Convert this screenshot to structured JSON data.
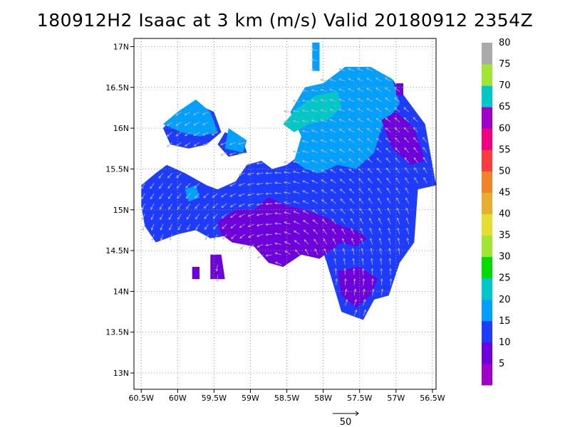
{
  "title": "180912H2 Isaac at 3 km (m/s) Valid 20180912 2354Z",
  "chart_data": {
    "type": "heatmap",
    "title": "180912H2 Isaac at 3 km (m/s) Valid 20180912 2354Z",
    "x_ticks": [
      -60.5,
      -60,
      -59.5,
      -59,
      -58.5,
      -58,
      -57.5,
      -57,
      -56.5
    ],
    "x_tick_labels": [
      "60.5W",
      "60W",
      "59.5W",
      "59W",
      "58.5W",
      "58W",
      "57.5W",
      "57W",
      "56.5W"
    ],
    "y_ticks": [
      13,
      13.5,
      14,
      14.5,
      15,
      15.5,
      16,
      16.5,
      17
    ],
    "y_tick_labels": [
      "13N",
      "13.5N",
      "14N",
      "14.5N",
      "15N",
      "15.5N",
      "16N",
      "16.5N",
      "17N"
    ],
    "xlim": [
      -60.6,
      -56.45
    ],
    "ylim": [
      12.8,
      17.1
    ],
    "grid": true,
    "colorbar": {
      "colors": [
        "#a000c8",
        "#6e00dc",
        "#1e3cff",
        "#00a0ff",
        "#00c8c8",
        "#00dc00",
        "#a0e632",
        "#e6dc32",
        "#e6af2d",
        "#f08228",
        "#fa3c3c",
        "#f00082",
        "#a000c8",
        "#00c8c8",
        "#a0e632",
        "#aaaaaa"
      ],
      "labels": [
        "5",
        "10",
        "15",
        "20",
        "25",
        "30",
        "35",
        "40",
        "45",
        "50",
        "55",
        "60",
        "65",
        "70",
        "75",
        "80"
      ]
    },
    "regions": [
      {
        "level": 15,
        "color": "#1e3cff",
        "polygon": [
          [
            -60.5,
            15.3
          ],
          [
            -60.3,
            15.45
          ],
          [
            -60.15,
            15.55
          ],
          [
            -59.9,
            15.45
          ],
          [
            -59.6,
            15.3
          ],
          [
            -59.45,
            15.25
          ],
          [
            -59.2,
            15.35
          ],
          [
            -59.05,
            15.55
          ],
          [
            -58.85,
            15.6
          ],
          [
            -58.7,
            15.5
          ],
          [
            -58.5,
            15.55
          ],
          [
            -58.35,
            15.65
          ],
          [
            -58.3,
            15.9
          ],
          [
            -58.45,
            16.2
          ],
          [
            -58.25,
            16.5
          ],
          [
            -58.0,
            16.55
          ],
          [
            -57.7,
            16.75
          ],
          [
            -57.35,
            16.75
          ],
          [
            -57.05,
            16.6
          ],
          [
            -56.85,
            16.35
          ],
          [
            -56.6,
            16.05
          ],
          [
            -56.45,
            15.3
          ],
          [
            -56.7,
            15.25
          ],
          [
            -56.75,
            14.6
          ],
          [
            -56.95,
            14.35
          ],
          [
            -57.1,
            13.95
          ],
          [
            -57.3,
            13.9
          ],
          [
            -57.45,
            13.65
          ],
          [
            -57.75,
            13.75
          ],
          [
            -57.95,
            14.35
          ],
          [
            -58.05,
            14.6
          ],
          [
            -58.45,
            14.75
          ],
          [
            -58.8,
            14.65
          ],
          [
            -59.2,
            14.7
          ],
          [
            -59.55,
            14.65
          ],
          [
            -59.75,
            14.75
          ],
          [
            -60.0,
            14.7
          ],
          [
            -60.3,
            14.6
          ],
          [
            -60.45,
            14.8
          ],
          [
            -60.5,
            15.05
          ]
        ]
      },
      {
        "level": 15,
        "color": "#1e3cff",
        "polygon": [
          [
            -60.2,
            16.0
          ],
          [
            -60.0,
            16.2
          ],
          [
            -59.75,
            16.3
          ],
          [
            -59.5,
            16.2
          ],
          [
            -59.4,
            15.95
          ],
          [
            -59.6,
            15.8
          ],
          [
            -59.85,
            15.75
          ],
          [
            -60.1,
            15.8
          ]
        ]
      },
      {
        "level": 15,
        "color": "#1e3cff",
        "polygon": [
          [
            -59.35,
            15.95
          ],
          [
            -59.1,
            15.85
          ],
          [
            -59.05,
            15.7
          ],
          [
            -59.3,
            15.65
          ],
          [
            -59.45,
            15.8
          ]
        ]
      },
      {
        "level": 20,
        "color": "#00a0ff",
        "polygon": [
          [
            -58.4,
            15.6
          ],
          [
            -58.3,
            15.9
          ],
          [
            -58.45,
            16.2
          ],
          [
            -58.25,
            16.5
          ],
          [
            -58.0,
            16.55
          ],
          [
            -57.7,
            16.75
          ],
          [
            -57.35,
            16.75
          ],
          [
            -57.05,
            16.6
          ],
          [
            -56.95,
            16.3
          ],
          [
            -57.2,
            16.0
          ],
          [
            -57.3,
            15.7
          ],
          [
            -57.55,
            15.5
          ],
          [
            -57.8,
            15.55
          ],
          [
            -58.05,
            15.45
          ],
          [
            -58.25,
            15.5
          ]
        ]
      },
      {
        "level": 20,
        "color": "#00a0ff",
        "polygon": [
          [
            -60.2,
            16.05
          ],
          [
            -60.0,
            16.2
          ],
          [
            -59.75,
            16.35
          ],
          [
            -59.55,
            16.2
          ],
          [
            -59.45,
            15.95
          ],
          [
            -59.7,
            15.9
          ],
          [
            -59.95,
            15.95
          ]
        ]
      },
      {
        "level": 20,
        "color": "#00a0ff",
        "polygon": [
          [
            -59.3,
            16.0
          ],
          [
            -59.05,
            15.85
          ],
          [
            -59.1,
            15.7
          ],
          [
            -59.35,
            15.75
          ]
        ]
      },
      {
        "level": 20,
        "color": "#00a0ff",
        "polygon": [
          [
            -58.15,
            17.05
          ],
          [
            -58.05,
            17.05
          ],
          [
            -58.05,
            16.7
          ],
          [
            -58.15,
            16.7
          ]
        ]
      },
      {
        "level": 20,
        "color": "#00a0ff",
        "polygon": [
          [
            -59.9,
            15.25
          ],
          [
            -59.75,
            15.3
          ],
          [
            -59.7,
            15.15
          ],
          [
            -59.85,
            15.1
          ]
        ]
      },
      {
        "level": 25,
        "color": "#00c8c8",
        "polygon": [
          [
            -58.55,
            16.05
          ],
          [
            -58.35,
            16.25
          ],
          [
            -58.1,
            16.4
          ],
          [
            -57.8,
            16.45
          ],
          [
            -57.75,
            16.25
          ],
          [
            -57.95,
            16.1
          ],
          [
            -58.2,
            16.05
          ],
          [
            -58.4,
            15.95
          ]
        ]
      },
      {
        "level": 10,
        "color": "#6e00dc",
        "polygon": [
          [
            -59.45,
            14.85
          ],
          [
            -59.2,
            15.0
          ],
          [
            -58.95,
            15.0
          ],
          [
            -58.75,
            15.15
          ],
          [
            -58.5,
            15.05
          ],
          [
            -58.25,
            15.0
          ],
          [
            -57.95,
            14.9
          ],
          [
            -57.75,
            14.8
          ],
          [
            -57.55,
            14.75
          ],
          [
            -57.4,
            14.65
          ],
          [
            -57.55,
            14.55
          ],
          [
            -57.75,
            14.6
          ],
          [
            -57.9,
            14.5
          ],
          [
            -58.05,
            14.4
          ],
          [
            -58.3,
            14.45
          ],
          [
            -58.55,
            14.3
          ],
          [
            -58.75,
            14.35
          ],
          [
            -58.95,
            14.55
          ],
          [
            -59.25,
            14.6
          ],
          [
            -59.4,
            14.7
          ]
        ]
      },
      {
        "level": 10,
        "color": "#6e00dc",
        "polygon": [
          [
            -57.8,
            14.25
          ],
          [
            -57.5,
            14.3
          ],
          [
            -57.25,
            14.15
          ],
          [
            -57.35,
            13.95
          ],
          [
            -57.55,
            13.8
          ],
          [
            -57.75,
            13.95
          ]
        ]
      },
      {
        "level": 10,
        "color": "#6e00dc",
        "polygon": [
          [
            -57.2,
            16.1
          ],
          [
            -57.0,
            16.2
          ],
          [
            -56.75,
            16.0
          ],
          [
            -56.6,
            15.6
          ],
          [
            -56.8,
            15.55
          ],
          [
            -57.05,
            15.75
          ]
        ]
      },
      {
        "level": 10,
        "color": "#6e00dc",
        "polygon": [
          [
            -59.55,
            14.45
          ],
          [
            -59.4,
            14.45
          ],
          [
            -59.35,
            14.15
          ],
          [
            -59.55,
            14.15
          ]
        ]
      },
      {
        "level": 10,
        "color": "#6e00dc",
        "polygon": [
          [
            -59.8,
            14.3
          ],
          [
            -59.7,
            14.3
          ],
          [
            -59.7,
            14.15
          ],
          [
            -59.8,
            14.15
          ]
        ]
      },
      {
        "level": 10,
        "color": "#6e00dc",
        "polygon": [
          [
            -57.0,
            16.55
          ],
          [
            -56.9,
            16.55
          ],
          [
            -56.9,
            16.4
          ],
          [
            -57.0,
            16.4
          ]
        ]
      }
    ],
    "vector_scale": {
      "value": 50,
      "label": "50"
    }
  }
}
